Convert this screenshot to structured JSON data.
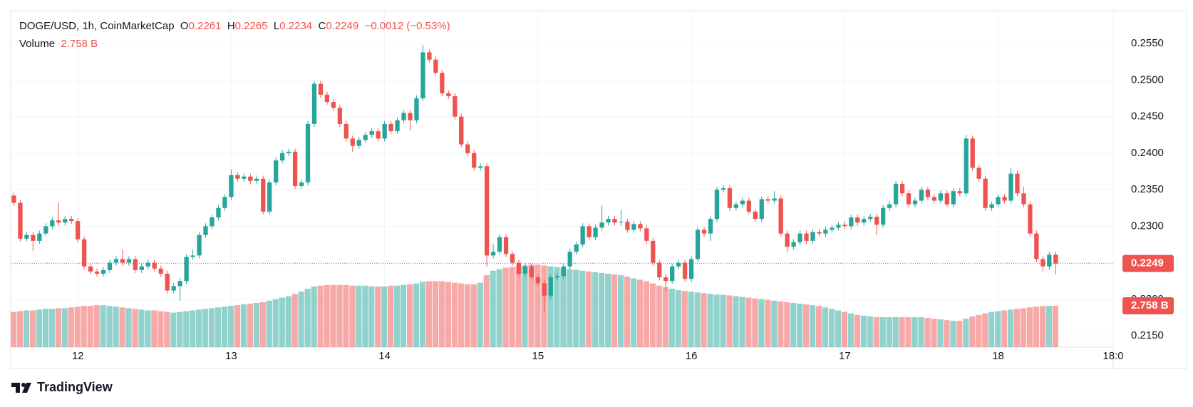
{
  "chart_data": {
    "type": "candlestick",
    "title": "DOGE/USD, 1h, CoinMarketCap",
    "ohlc_prefixes": [
      "O",
      "H",
      "L",
      "C"
    ],
    "change_label": "−0.0012 (−0.53%)",
    "volume_title": "Volume",
    "last_volume_label": "2.758 B",
    "brand": "TradingView",
    "up_color": "#26a69a",
    "down_color": "#ef5350",
    "grid": true,
    "xlim": [
      -0.5,
      172
    ],
    "xticks": [
      {
        "value": 10,
        "label": "12"
      },
      {
        "value": 34,
        "label": "13"
      },
      {
        "value": 58,
        "label": "14"
      },
      {
        "value": 82,
        "label": "15"
      },
      {
        "value": 106,
        "label": "16"
      },
      {
        "value": 130,
        "label": "17"
      },
      {
        "value": 154,
        "label": "18"
      },
      {
        "value": 172,
        "label": "18:0"
      }
    ],
    "ylim": [
      0.21345,
      0.2595
    ],
    "yticks": [
      {
        "value": 0.215,
        "label": "0.2150"
      },
      {
        "value": 0.22,
        "label": "0.2200"
      },
      {
        "value": 0.225,
        "label": "0.2250"
      },
      {
        "value": 0.23,
        "label": "0.2300"
      },
      {
        "value": 0.235,
        "label": "0.2350"
      },
      {
        "value": 0.24,
        "label": "0.2400"
      },
      {
        "value": 0.245,
        "label": "0.2450"
      },
      {
        "value": 0.25,
        "label": "0.2500"
      },
      {
        "value": 0.255,
        "label": "0.2550"
      }
    ],
    "open": [
      0.2342,
      0.2332,
      0.2283,
      0.2288,
      0.228,
      0.229,
      0.23,
      0.2308,
      0.2305,
      0.231,
      0.2307,
      0.2282,
      0.2245,
      0.2238,
      0.2235,
      0.224,
      0.225,
      0.2255,
      0.225,
      0.2255,
      0.224,
      0.2245,
      0.225,
      0.2242,
      0.2235,
      0.2212,
      0.2218,
      0.2225,
      0.2258,
      0.226,
      0.2288,
      0.23,
      0.2312,
      0.2325,
      0.234,
      0.237,
      0.2365,
      0.2368,
      0.2362,
      0.2365,
      0.232,
      0.236,
      0.239,
      0.24,
      0.2402,
      0.2355,
      0.236,
      0.244,
      0.2495,
      0.248,
      0.247,
      0.2462,
      0.244,
      0.242,
      0.241,
      0.2418,
      0.2425,
      0.243,
      0.242,
      0.244,
      0.243,
      0.2445,
      0.2455,
      0.2445,
      0.2475,
      0.2538,
      0.2528,
      0.251,
      0.2482,
      0.2478,
      0.245,
      0.2412,
      0.24,
      0.238,
      0.2382,
      0.226,
      0.2265,
      0.2285,
      0.2262,
      0.225,
      0.2235,
      0.2245,
      0.223,
      0.2222,
      0.2205,
      0.223,
      0.2232,
      0.2245,
      0.2265,
      0.2275,
      0.23,
      0.2285,
      0.2298,
      0.2305,
      0.231,
      0.2305,
      0.2306,
      0.2295,
      0.2303,
      0.2297,
      0.228,
      0.225,
      0.223,
      0.2225,
      0.2245,
      0.225,
      0.2228,
      0.2255,
      0.2295,
      0.229,
      0.231,
      0.235,
      0.2352,
      0.2325,
      0.233,
      0.2335,
      0.232,
      0.231,
      0.2337,
      0.2335,
      0.2338,
      0.229,
      0.2272,
      0.2278,
      0.229,
      0.228,
      0.2292,
      0.229,
      0.2295,
      0.2298,
      0.2302,
      0.23,
      0.2312,
      0.2305,
      0.231,
      0.2313,
      0.2302,
      0.2325,
      0.233,
      0.2358,
      0.2345,
      0.233,
      0.2335,
      0.235,
      0.234,
      0.2335,
      0.2345,
      0.233,
      0.2348,
      0.2345,
      0.242,
      0.238,
      0.2365,
      0.2325,
      0.233,
      0.234,
      0.2335,
      0.2372,
      0.2345,
      0.233,
      0.229,
      0.2255,
      0.2245,
      0.2261
    ],
    "high": [
      0.2346,
      0.2336,
      0.2292,
      0.2292,
      0.2294,
      0.2304,
      0.2312,
      0.2332,
      0.2314,
      0.2314,
      0.2311,
      0.2286,
      0.2249,
      0.2242,
      0.2244,
      0.2254,
      0.2259,
      0.2268,
      0.2259,
      0.2259,
      0.2249,
      0.2254,
      0.2254,
      0.2246,
      0.2239,
      0.2222,
      0.2229,
      0.2262,
      0.2268,
      0.2292,
      0.2304,
      0.2316,
      0.2329,
      0.2344,
      0.2378,
      0.2374,
      0.2372,
      0.2372,
      0.2369,
      0.2369,
      0.2364,
      0.2394,
      0.2404,
      0.2406,
      0.2406,
      0.2364,
      0.2444,
      0.2499,
      0.2499,
      0.2484,
      0.2474,
      0.2466,
      0.2444,
      0.2424,
      0.2422,
      0.2429,
      0.2434,
      0.2434,
      0.2444,
      0.2444,
      0.2449,
      0.2459,
      0.2459,
      0.2479,
      0.2548,
      0.2542,
      0.2532,
      0.2514,
      0.2486,
      0.2482,
      0.2454,
      0.2416,
      0.2404,
      0.2386,
      0.2386,
      0.2275,
      0.2289,
      0.2289,
      0.2266,
      0.2254,
      0.2249,
      0.2249,
      0.2234,
      0.2226,
      0.2234,
      0.2236,
      0.2249,
      0.2269,
      0.2279,
      0.2304,
      0.2304,
      0.2302,
      0.2328,
      0.2314,
      0.2314,
      0.2322,
      0.231,
      0.2307,
      0.2307,
      0.2301,
      0.2284,
      0.2254,
      0.2234,
      0.2249,
      0.2254,
      0.2254,
      0.2259,
      0.2299,
      0.2299,
      0.2314,
      0.2354,
      0.2356,
      0.2356,
      0.2334,
      0.2339,
      0.2339,
      0.2324,
      0.2341,
      0.2341,
      0.2348,
      0.2342,
      0.2294,
      0.2282,
      0.2294,
      0.2294,
      0.2296,
      0.2296,
      0.2299,
      0.2302,
      0.2306,
      0.2306,
      0.2316,
      0.2316,
      0.2314,
      0.2317,
      0.2317,
      0.2329,
      0.2334,
      0.2362,
      0.2362,
      0.2349,
      0.2339,
      0.2354,
      0.2354,
      0.2344,
      0.2349,
      0.2349,
      0.2352,
      0.2352,
      0.2425,
      0.2424,
      0.2384,
      0.2369,
      0.2334,
      0.2344,
      0.2344,
      0.238,
      0.2376,
      0.2354,
      0.2334,
      0.2294,
      0.2259,
      0.2265,
      0.2265
    ],
    "low": [
      0.2328,
      0.2279,
      0.2279,
      0.2266,
      0.2276,
      0.2286,
      0.2296,
      0.2301,
      0.2301,
      0.2303,
      0.2278,
      0.2241,
      0.2234,
      0.2231,
      0.2231,
      0.2236,
      0.2246,
      0.2246,
      0.2246,
      0.2236,
      0.2236,
      0.2241,
      0.2238,
      0.2231,
      0.2208,
      0.2208,
      0.2198,
      0.2221,
      0.2254,
      0.2256,
      0.2284,
      0.2296,
      0.2308,
      0.2321,
      0.2336,
      0.2361,
      0.2361,
      0.2358,
      0.2358,
      0.2316,
      0.2316,
      0.2356,
      0.2386,
      0.2396,
      0.2351,
      0.2351,
      0.2356,
      0.2436,
      0.2476,
      0.2466,
      0.2458,
      0.2436,
      0.2416,
      0.2402,
      0.2406,
      0.2414,
      0.2421,
      0.2416,
      0.2416,
      0.2426,
      0.2426,
      0.2441,
      0.2431,
      0.2441,
      0.2471,
      0.2524,
      0.2506,
      0.2478,
      0.2474,
      0.2446,
      0.2408,
      0.2396,
      0.2376,
      0.2376,
      0.2245,
      0.2256,
      0.2261,
      0.2258,
      0.2246,
      0.2231,
      0.2231,
      0.2226,
      0.2218,
      0.2182,
      0.2201,
      0.2226,
      0.2228,
      0.2241,
      0.2261,
      0.2271,
      0.2281,
      0.2281,
      0.2294,
      0.2301,
      0.2301,
      0.2301,
      0.2291,
      0.2291,
      0.2293,
      0.2276,
      0.2246,
      0.2226,
      0.221,
      0.2221,
      0.2241,
      0.2224,
      0.2224,
      0.2251,
      0.2286,
      0.228,
      0.2306,
      0.2346,
      0.2321,
      0.2321,
      0.2326,
      0.2316,
      0.2306,
      0.2306,
      0.2331,
      0.2331,
      0.2286,
      0.2265,
      0.2268,
      0.2274,
      0.2276,
      0.2276,
      0.2286,
      0.2286,
      0.2291,
      0.2294,
      0.2296,
      0.2296,
      0.2301,
      0.2301,
      0.2306,
      0.2288,
      0.2298,
      0.2321,
      0.2326,
      0.2341,
      0.2326,
      0.2326,
      0.2331,
      0.2336,
      0.2331,
      0.2331,
      0.2326,
      0.2326,
      0.2341,
      0.2341,
      0.2376,
      0.2361,
      0.2321,
      0.2321,
      0.2326,
      0.2331,
      0.2331,
      0.2341,
      0.2326,
      0.2286,
      0.2251,
      0.2238,
      0.224,
      0.2234
    ],
    "close": [
      0.2332,
      0.2283,
      0.2288,
      0.228,
      0.229,
      0.23,
      0.2308,
      0.2305,
      0.231,
      0.2307,
      0.2282,
      0.2245,
      0.2238,
      0.2235,
      0.224,
      0.225,
      0.2255,
      0.225,
      0.2255,
      0.224,
      0.2245,
      0.225,
      0.2242,
      0.2235,
      0.2212,
      0.2218,
      0.2225,
      0.2258,
      0.226,
      0.2288,
      0.23,
      0.2312,
      0.2325,
      0.234,
      0.237,
      0.2365,
      0.2368,
      0.2362,
      0.2365,
      0.232,
      0.236,
      0.239,
      0.24,
      0.2402,
      0.2355,
      0.236,
      0.244,
      0.2495,
      0.248,
      0.247,
      0.2462,
      0.244,
      0.242,
      0.241,
      0.2418,
      0.2425,
      0.243,
      0.242,
      0.244,
      0.243,
      0.2445,
      0.2455,
      0.2445,
      0.2475,
      0.2538,
      0.2528,
      0.251,
      0.2482,
      0.2478,
      0.245,
      0.2412,
      0.24,
      0.238,
      0.2382,
      0.226,
      0.2265,
      0.2285,
      0.2262,
      0.225,
      0.2235,
      0.2245,
      0.223,
      0.2222,
      0.2205,
      0.223,
      0.2232,
      0.2245,
      0.2265,
      0.2275,
      0.23,
      0.2285,
      0.2298,
      0.2305,
      0.231,
      0.2305,
      0.2306,
      0.2295,
      0.2303,
      0.2297,
      0.228,
      0.225,
      0.223,
      0.2225,
      0.2245,
      0.225,
      0.2228,
      0.2255,
      0.2295,
      0.229,
      0.231,
      0.235,
      0.2352,
      0.2325,
      0.233,
      0.2335,
      0.232,
      0.231,
      0.2337,
      0.2335,
      0.2338,
      0.229,
      0.2272,
      0.2278,
      0.229,
      0.228,
      0.2292,
      0.229,
      0.2295,
      0.2298,
      0.2302,
      0.23,
      0.2312,
      0.2305,
      0.231,
      0.2313,
      0.2302,
      0.2325,
      0.233,
      0.2358,
      0.2345,
      0.233,
      0.2335,
      0.235,
      0.234,
      0.2335,
      0.2345,
      0.233,
      0.2348,
      0.2345,
      0.242,
      0.238,
      0.2365,
      0.2325,
      0.233,
      0.234,
      0.2335,
      0.2372,
      0.2345,
      0.233,
      0.229,
      0.2255,
      0.2245,
      0.2261,
      0.2249
    ],
    "volume": [
      2.35,
      2.4,
      2.45,
      2.45,
      2.5,
      2.55,
      2.55,
      2.6,
      2.6,
      2.65,
      2.7,
      2.75,
      2.75,
      2.8,
      2.8,
      2.75,
      2.7,
      2.65,
      2.6,
      2.55,
      2.5,
      2.45,
      2.45,
      2.4,
      2.35,
      2.3,
      2.35,
      2.4,
      2.45,
      2.5,
      2.55,
      2.6,
      2.65,
      2.7,
      2.75,
      2.8,
      2.85,
      2.9,
      2.95,
      3.0,
      3.1,
      3.2,
      3.3,
      3.4,
      3.55,
      3.7,
      3.9,
      4.05,
      4.1,
      4.15,
      4.15,
      4.15,
      4.15,
      4.1,
      4.1,
      4.1,
      4.05,
      4.05,
      4.05,
      4.1,
      4.1,
      4.15,
      4.2,
      4.25,
      4.35,
      4.4,
      4.4,
      4.4,
      4.35,
      4.3,
      4.25,
      4.2,
      4.2,
      4.3,
      4.8,
      5.1,
      5.2,
      5.3,
      5.35,
      5.4,
      5.45,
      5.5,
      5.5,
      5.45,
      5.4,
      5.35,
      5.25,
      5.2,
      5.15,
      5.1,
      5.05,
      5.0,
      4.95,
      4.9,
      4.85,
      4.8,
      4.7,
      4.6,
      4.5,
      4.4,
      4.25,
      4.1,
      4.0,
      3.9,
      3.8,
      3.75,
      3.7,
      3.65,
      3.6,
      3.55,
      3.5,
      3.5,
      3.45,
      3.4,
      3.35,
      3.3,
      3.25,
      3.2,
      3.15,
      3.1,
      3.05,
      3.0,
      2.95,
      2.9,
      2.85,
      2.8,
      2.75,
      2.65,
      2.55,
      2.45,
      2.35,
      2.25,
      2.15,
      2.1,
      2.05,
      2.0,
      2.0,
      2.0,
      2.0,
      2.0,
      2.0,
      2.0,
      2.0,
      1.95,
      1.9,
      1.85,
      1.8,
      1.75,
      1.75,
      1.9,
      2.05,
      2.15,
      2.25,
      2.35,
      2.4,
      2.45,
      2.5,
      2.55,
      2.6,
      2.65,
      2.7,
      2.74,
      2.75,
      2.758
    ]
  }
}
